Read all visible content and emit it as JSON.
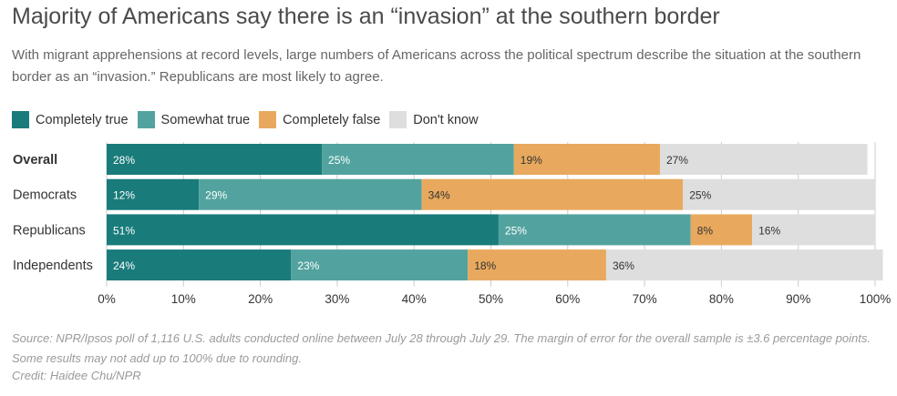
{
  "header": {
    "title": "Majority of Americans say there is an “invasion” at the southern border",
    "subtitle": "With migrant apprehensions at record levels, large numbers of Americans across the political spectrum describe the situation at the southern border as an “invasion.” Republicans are most likely to agree."
  },
  "legend": [
    {
      "label": "Completely true",
      "color": "#1a7b7b"
    },
    {
      "label": "Somewhat true",
      "color": "#52a39f"
    },
    {
      "label": "Completely false",
      "color": "#e8a95e"
    },
    {
      "label": "Don't know",
      "color": "#dedede"
    }
  ],
  "chart_data": {
    "type": "bar",
    "orientation": "horizontal",
    "stacked": true,
    "categories": [
      "Overall",
      "Democrats",
      "Republicans",
      "Independents"
    ],
    "bold_categories": [
      "Overall"
    ],
    "series": [
      {
        "name": "Completely true",
        "color": "#1a7b7b",
        "label_color": "#ffffff",
        "values": [
          28,
          12,
          51,
          24
        ]
      },
      {
        "name": "Somewhat true",
        "color": "#52a39f",
        "label_color": "#ffffff",
        "values": [
          25,
          29,
          25,
          23
        ]
      },
      {
        "name": "Completely false",
        "color": "#e8a95e",
        "label_color": "#333333",
        "values": [
          19,
          34,
          8,
          18
        ]
      },
      {
        "name": "Don't know",
        "color": "#dedede",
        "label_color": "#333333",
        "values": [
          27,
          25,
          16,
          36
        ]
      }
    ],
    "xlim": [
      0,
      100
    ],
    "x_ticks": [
      "0%",
      "10%",
      "20%",
      "30%",
      "40%",
      "50%",
      "60%",
      "70%",
      "80%",
      "90%",
      "100%"
    ],
    "value_suffix": "%",
    "grid": true
  },
  "footer": {
    "source": "Source: NPR/Ipsos poll of 1,116 U.S. adults conducted online between July 28 through July 29. The margin of error for the overall sample is ±3.6 percentage points. Some results may not add up to 100% due to rounding.",
    "credit": "Credit: Haidee Chu/NPR"
  }
}
